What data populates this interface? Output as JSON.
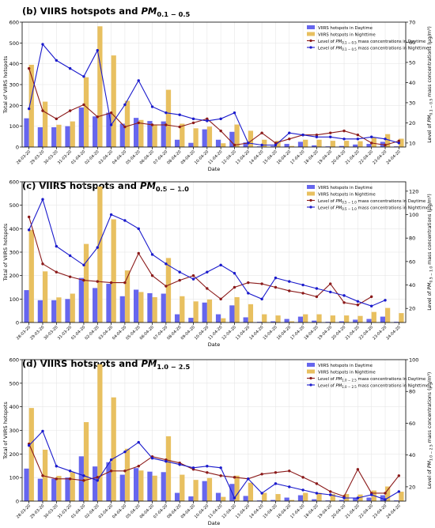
{
  "figure": {
    "colors": {
      "day_bar": "#6666ee",
      "night_bar": "#e8c060",
      "day_line": "#8b1a1a",
      "night_line": "#1a1acc",
      "grid": "#e6e6e6",
      "axis": "#000000"
    }
  },
  "chart_data": [
    {
      "type": "bar",
      "title_prefix": "(b) VIIRS hotspots and ",
      "pm_sub": "0.1 − 0.5",
      "xlabel": "Date",
      "ylabel_left": "Total of VIIRS hotspots",
      "ylabel_right_prefix": "Level of ",
      "ylabel_right_sub": "0.1 − 0.5",
      "ylabel_right_suffix": " mass concentrations (μg/m³)",
      "ylim_left": [
        0,
        600
      ],
      "yticks_left": [
        "0",
        "100",
        "200",
        "300",
        "400",
        "500",
        "600"
      ],
      "ylim_right": [
        8,
        70
      ],
      "yticks_right": [
        "10",
        "20",
        "30",
        "40",
        "50",
        "60",
        "70"
      ],
      "ytick_values_right": [
        10,
        20,
        30,
        40,
        50,
        60,
        70
      ],
      "grid": true,
      "legend_position": "top-right",
      "legend": [
        "VIIRS hotspots in Daytime",
        "VIIRS hotspots in Nighttime",
        "Level of PM0.1-0.5 mass concentrations in Daytime",
        "Level of PM0.1-0.5 mass concentrations in Nighttime"
      ],
      "legend_label_prefix": [
        "VIIRS hotspots in Daytime",
        "VIIRS hotspots in Nighttime",
        "Level of ",
        "Level of "
      ],
      "legend_label_sub": [
        "",
        "",
        "0.1 − 0.5",
        "0.1 − 0.5"
      ],
      "legend_label_suffix": [
        "",
        "",
        " mass concentrations in Daytime",
        " mass concentrations in Nighttime"
      ],
      "categories": [
        "28-03-20",
        "29-03-20",
        "30-03-20",
        "31-03-20",
        "01-04-20",
        "02-04-20",
        "03-04-20",
        "04-04-20",
        "05-04-20",
        "06-04-20",
        "07-04-20",
        "08-04-20",
        "09-04-20",
        "10-04-20",
        "11-04-20",
        "12-04-20",
        "13-04-20",
        "14-04-20",
        "15-04-20",
        "16-04-20",
        "17-04-20",
        "18-04-20",
        "19-04-20",
        "20-04-20",
        "21-04-20",
        "22-04-20",
        "23-04-20",
        "24-04-20"
      ],
      "series": [
        {
          "name": "VIIRS hotspots in Daytime",
          "kind": "bar",
          "axis": "left",
          "values": [
            138,
            95,
            95,
            100,
            190,
            147,
            165,
            112,
            140,
            125,
            123,
            35,
            20,
            85,
            35,
            73,
            22,
            3,
            5,
            15,
            25,
            8,
            3,
            5,
            12,
            15,
            25,
            3
          ]
        },
        {
          "name": "VIIRS hotspots in Nighttime",
          "kind": "bar",
          "axis": "left",
          "values": [
            395,
            218,
            107,
            123,
            335,
            580,
            440,
            222,
            130,
            108,
            275,
            112,
            90,
            98,
            18,
            108,
            78,
            35,
            30,
            5,
            35,
            35,
            30,
            30,
            28,
            45,
            62,
            40
          ]
        },
        {
          "name": "Level of PM0.1-0.5 mass concentrations in Daytime",
          "kind": "line",
          "axis": "right",
          "values": [
            47,
            26,
            22,
            26,
            29,
            23,
            25,
            18,
            20,
            19,
            19,
            18,
            20,
            22,
            16,
            9,
            10,
            15,
            10,
            12,
            14,
            14,
            15,
            16,
            14,
            10,
            9,
            11
          ]
        },
        {
          "name": "Level of PM0.1-0.5 mass concentrations in Nighttime",
          "kind": "line",
          "axis": "right",
          "values": [
            27,
            59,
            51,
            47,
            43,
            56,
            19,
            29,
            41,
            28,
            25,
            24,
            22,
            21,
            22,
            25,
            10,
            9,
            9,
            15,
            14,
            13,
            13,
            12,
            12,
            13,
            12,
            10
          ]
        }
      ]
    },
    {
      "type": "bar",
      "title_prefix": "(c) VIIRS hotspots and ",
      "pm_sub": "0.5 − 1.0",
      "xlabel": "Date",
      "ylabel_left": "Total of VIIRS hotspots",
      "ylabel_right_prefix": "Level of ",
      "ylabel_right_sub": "0.5 − 1.0",
      "ylabel_right_suffix": " mass concentrations (μg/m³)",
      "ylim_left": [
        0,
        600
      ],
      "yticks_left": [
        "0",
        "100",
        "200",
        "300",
        "400",
        "500",
        "600"
      ],
      "ylim_right": [
        8,
        128
      ],
      "yticks_right": [
        "20",
        "40",
        "60",
        "80",
        "100",
        "120"
      ],
      "ytick_values_right": [
        20,
        40,
        60,
        80,
        100,
        120
      ],
      "grid": true,
      "legend_position": "top-right",
      "legend": [
        "VIIRS hotspots in Daytime",
        "VIIRS hotspots in Nighttime",
        "Level of PM0.5-1.0 mass concentrations in Daytime",
        "Level of PM0.5-1.0 mass concentrations in Nighttime"
      ],
      "legend_label_prefix": [
        "VIIRS hotspots in Daytime",
        "VIIRS hotspots in Nighttime",
        "Level of ",
        "Level of "
      ],
      "legend_label_sub": [
        "",
        "",
        "0.5 − 1.0",
        "0.5 − 1.0"
      ],
      "legend_label_suffix": [
        "",
        "",
        " mass concentrations in Daytime",
        " mass concentrations in Nighttime"
      ],
      "categories": [
        "28-03-20",
        "29-03-20",
        "30-03-20",
        "31-03-20",
        "01-04-20",
        "02-04-20",
        "03-04-20",
        "04-04-20",
        "05-04-20",
        "06-04-20",
        "07-04-20",
        "08-04-20",
        "09-04-20",
        "10-04-20",
        "11-04-20",
        "12-04-20",
        "13-04-20",
        "14-04-20",
        "15-04-20",
        "16-04-20",
        "17-04-20",
        "18-04-20",
        "19-04-20",
        "20-04-20",
        "21-04-20",
        "22-04-20",
        "23-04-20",
        "24-04-20"
      ],
      "series": [
        {
          "name": "VIIRS hotspots in Daytime",
          "kind": "bar",
          "axis": "left",
          "values": [
            138,
            95,
            95,
            100,
            190,
            147,
            165,
            112,
            140,
            125,
            123,
            35,
            20,
            85,
            35,
            73,
            22,
            3,
            5,
            15,
            25,
            8,
            3,
            5,
            12,
            15,
            25,
            3
          ]
        },
        {
          "name": "VIIRS hotspots in Nighttime",
          "kind": "bar",
          "axis": "left",
          "values": [
            395,
            218,
            107,
            123,
            335,
            580,
            440,
            222,
            130,
            108,
            275,
            112,
            90,
            98,
            18,
            108,
            78,
            35,
            30,
            5,
            35,
            35,
            30,
            30,
            28,
            45,
            62,
            40
          ]
        },
        {
          "name": "Level of PM0.5-1.0 mass concentrations in Daytime",
          "kind": "line",
          "axis": "right",
          "values": [
            98,
            58,
            51,
            47,
            44,
            43,
            42,
            42,
            67,
            48,
            39,
            44,
            48,
            37,
            28,
            38,
            42,
            41,
            38,
            35,
            33,
            30,
            41,
            25,
            23,
            30,
            0,
            0
          ]
        },
        {
          "name": "Level of PM0.5-1.0 mass concentrations in Nighttime",
          "kind": "line",
          "axis": "right",
          "values": [
            87,
            113,
            73,
            65,
            57,
            72,
            100,
            95,
            88,
            66,
            58,
            51,
            45,
            51,
            57,
            50,
            33,
            28,
            46,
            43,
            40,
            37,
            34,
            31,
            26,
            22,
            27,
            0
          ]
        }
      ]
    },
    {
      "type": "bar",
      "title_prefix": "(d) VIIRS hotspots and ",
      "pm_sub": "1.0 − 2.5",
      "xlabel": "Date",
      "ylabel_left": "Total of VIIRS hotspots",
      "ylabel_right_prefix": "Level of ",
      "ylabel_right_sub": "1.0 − 2.5",
      "ylabel_right_suffix": " mass concentrations (μg/m³)",
      "ylim_left": [
        0,
        600
      ],
      "yticks_left": [
        "0",
        "100",
        "200",
        "300",
        "400",
        "500",
        "600"
      ],
      "ylim_right": [
        11,
        100
      ],
      "yticks_right": [
        "20",
        "40",
        "60",
        "80",
        "100"
      ],
      "ytick_values_right": [
        20,
        40,
        60,
        80,
        100
      ],
      "grid": true,
      "legend_position": "top-right",
      "legend": [
        "VIIRS hotspots in Daytime",
        "VIIRS hotspots in Nighttime",
        "Level of PM1.0-2.5 mass concentrations in Daytime",
        "Level of PM1.0-2.5 mass concentrations in Nighttime"
      ],
      "legend_label_prefix": [
        "VIIRS hotspots in Daytime",
        "VIIRS hotspots in Nighttime",
        "Level of ",
        "Level of "
      ],
      "legend_label_sub": [
        "",
        "",
        "1.0 − 2.5",
        "1.0 − 2.5"
      ],
      "legend_label_suffix": [
        "",
        "",
        " mass concentrations in Daytime",
        " mass concentrations in Nighttime"
      ],
      "categories": [
        "28-03-20",
        "29-03-20",
        "30-03-20",
        "31-03-20",
        "01-04-20",
        "02-04-20",
        "03-04-20",
        "04-04-20",
        "05-04-20",
        "06-04-20",
        "07-04-20",
        "08-04-20",
        "09-04-20",
        "10-04-20",
        "11-04-20",
        "12-04-20",
        "13-04-20",
        "14-04-20",
        "15-04-20",
        "16-04-20",
        "17-04-20",
        "18-04-20",
        "19-04-20",
        "20-04-20",
        "21-04-20",
        "22-04-20",
        "23-04-20",
        "24-04-20"
      ],
      "series": [
        {
          "name": "VIIRS hotspots in Daytime",
          "kind": "bar",
          "axis": "left",
          "values": [
            138,
            95,
            95,
            100,
            190,
            147,
            165,
            112,
            140,
            125,
            123,
            35,
            20,
            85,
            35,
            73,
            22,
            3,
            5,
            15,
            25,
            8,
            3,
            5,
            12,
            15,
            25,
            3
          ]
        },
        {
          "name": "VIIRS hotspots in Nighttime",
          "kind": "bar",
          "axis": "left",
          "values": [
            395,
            218,
            107,
            123,
            335,
            580,
            440,
            222,
            130,
            108,
            275,
            112,
            90,
            98,
            18,
            108,
            78,
            35,
            30,
            5,
            35,
            35,
            30,
            30,
            28,
            45,
            62,
            40
          ]
        },
        {
          "name": "Level of PM1.0-2.5 mass concentrations in Daytime",
          "kind": "line",
          "axis": "right",
          "values": [
            47,
            27,
            25,
            25,
            24,
            26,
            30,
            30,
            33,
            39,
            37,
            35,
            31,
            29,
            27,
            26,
            25,
            28,
            29,
            30,
            26,
            22,
            17,
            14,
            31,
            16,
            16,
            27
          ]
        },
        {
          "name": "Level of PM1.0-2.5 mass concentrations in Nighttime",
          "kind": "line",
          "axis": "right",
          "values": [
            46,
            55,
            33,
            30,
            27,
            24,
            37,
            42,
            48,
            38,
            36,
            34,
            32,
            33,
            32,
            13,
            25,
            16,
            22,
            20,
            18,
            16,
            15,
            13,
            13,
            15,
            12,
            17
          ]
        }
      ]
    }
  ]
}
